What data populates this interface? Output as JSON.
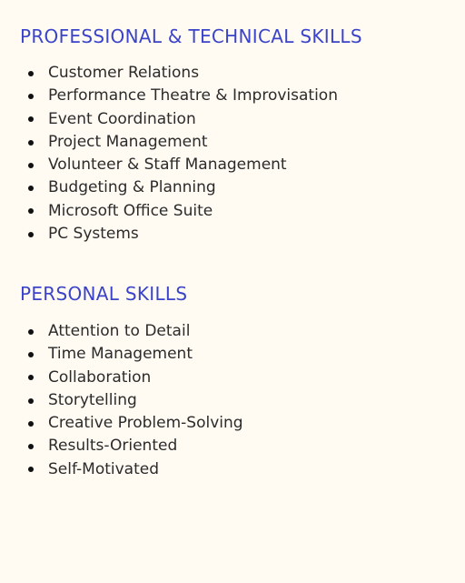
{
  "sections": [
    {
      "heading": "PROFESSIONAL & TECHNICAL SKILLS",
      "items": [
        "Customer Relations",
        "Performance Theatre & Improvisation",
        "Event Coordination",
        "Project Management",
        "Volunteer & Staff Management",
        "Budgeting & Planning",
        "Microsoft Office Suite",
        "PC Systems"
      ]
    },
    {
      "heading": "PERSONAL SKILLS",
      "items": [
        "Attention to Detail",
        "Time Management",
        "Collaboration",
        "Storytelling",
        "Creative Problem-Solving",
        "Results-Oriented",
        "Self-Motivated"
      ]
    }
  ],
  "colors": {
    "heading": "#3b44c9",
    "text": "#2b2b2b",
    "background": "#fffbf3"
  }
}
